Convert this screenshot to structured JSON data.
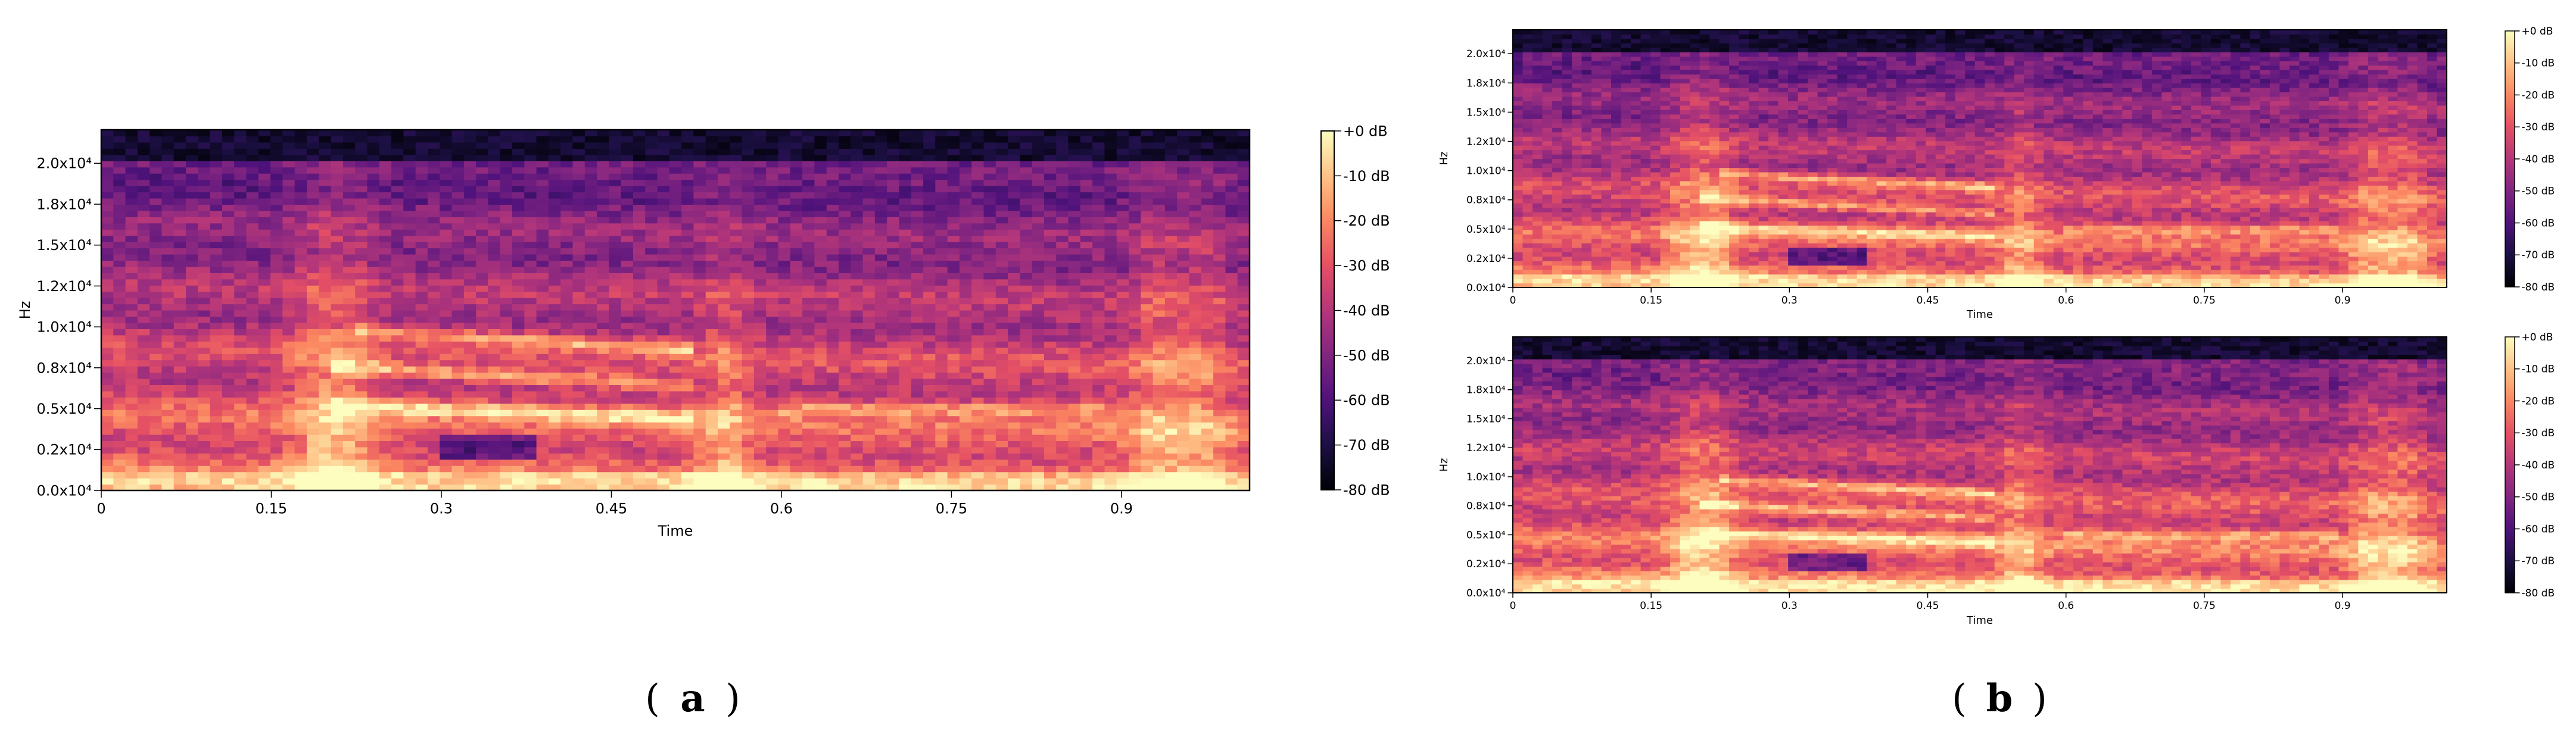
{
  "chart_data": [
    {
      "type": "heatmap",
      "panel": "a",
      "xlabel": "Time",
      "ylabel": "Hz",
      "x_ticks": [
        "0",
        "0.15",
        "0.3",
        "0.45",
        "0.6",
        "0.75",
        "0.9"
      ],
      "x_tick_values": [
        0,
        0.15,
        0.3,
        0.45,
        0.6,
        0.75,
        0.9
      ],
      "xlim": [
        0,
        1.013
      ],
      "y_ticks": [
        "0.0x10⁴",
        "0.2x10⁴",
        "0.5x10⁴",
        "0.8x10⁴",
        "1.0x10⁴",
        "1.2x10⁴",
        "1.5x10⁴",
        "1.8x10⁴",
        "2.0x10⁴"
      ],
      "y_tick_values": [
        0,
        2500,
        5000,
        7500,
        10000,
        12500,
        15000,
        17500,
        20000
      ],
      "ylim": [
        0,
        22050
      ],
      "colorbar": {
        "labels": [
          "+0 dB",
          "-10 dB",
          "-20 dB",
          "-30 dB",
          "-40 dB",
          "-50 dB",
          "-60 dB",
          "-70 dB",
          "-80 dB"
        ],
        "range_db": [
          -80,
          0
        ],
        "colormap": "magma"
      },
      "harmonic_tracks": [
        {
          "start_freq": 5200,
          "end_freq": 4400,
          "t_start": 0.2,
          "t_end": 0.52
        },
        {
          "start_freq": 7600,
          "end_freq": 6400,
          "t_start": 0.2,
          "t_end": 0.52
        },
        {
          "start_freq": 9800,
          "end_freq": 8600,
          "t_start": 0.22,
          "t_end": 0.52
        }
      ],
      "bright_bands_time": [
        0.19,
        0.22,
        0.55,
        0.93,
        0.97
      ]
    },
    {
      "type": "heatmap",
      "panel": "b-top",
      "xlabel": "Time",
      "ylabel": "Hz",
      "x_ticks": [
        "0",
        "0.15",
        "0.3",
        "0.45",
        "0.6",
        "0.75",
        "0.9"
      ],
      "x_tick_values": [
        0,
        0.15,
        0.3,
        0.45,
        0.6,
        0.75,
        0.9
      ],
      "xlim": [
        0,
        1.013
      ],
      "y_ticks": [
        "0.0x10⁴",
        "0.2x10⁴",
        "0.5x10⁴",
        "0.8x10⁴",
        "1.0x10⁴",
        "1.2x10⁴",
        "1.5x10⁴",
        "1.8x10⁴",
        "2.0x10⁴"
      ],
      "y_tick_values": [
        0,
        2500,
        5000,
        7500,
        10000,
        12500,
        15000,
        17500,
        20000
      ],
      "ylim": [
        0,
        22050
      ],
      "colorbar": {
        "labels": [
          "+0 dB",
          "-10 dB",
          "-20 dB",
          "-30 dB",
          "-40 dB",
          "-50 dB",
          "-60 dB",
          "-70 dB",
          "-80 dB"
        ],
        "range_db": [
          -80,
          0
        ],
        "colormap": "magma"
      }
    },
    {
      "type": "heatmap",
      "panel": "b-bottom",
      "xlabel": "Time",
      "ylabel": "Hz",
      "x_ticks": [
        "0",
        "0.15",
        "0.3",
        "0.45",
        "0.6",
        "0.75",
        "0.9"
      ],
      "x_tick_values": [
        0,
        0.15,
        0.3,
        0.45,
        0.6,
        0.75,
        0.9
      ],
      "xlim": [
        0,
        1.013
      ],
      "y_ticks": [
        "0.0x10⁴",
        "0.2x10⁴",
        "0.5x10⁴",
        "0.8x10⁴",
        "1.0x10⁴",
        "1.2x10⁴",
        "1.5x10⁴",
        "1.8x10⁴",
        "2.0x10⁴"
      ],
      "y_tick_values": [
        0,
        2500,
        5000,
        7500,
        10000,
        12500,
        15000,
        17500,
        20000
      ],
      "ylim": [
        0,
        22050
      ],
      "colorbar": {
        "labels": [
          "+0 dB",
          "-10 dB",
          "-20 dB",
          "-30 dB",
          "-40 dB",
          "-50 dB",
          "-60 dB",
          "-70 dB",
          "-80 dB"
        ],
        "range_db": [
          -80,
          0
        ],
        "colormap": "magma"
      }
    }
  ],
  "captions": {
    "a": "a",
    "b": "b"
  }
}
